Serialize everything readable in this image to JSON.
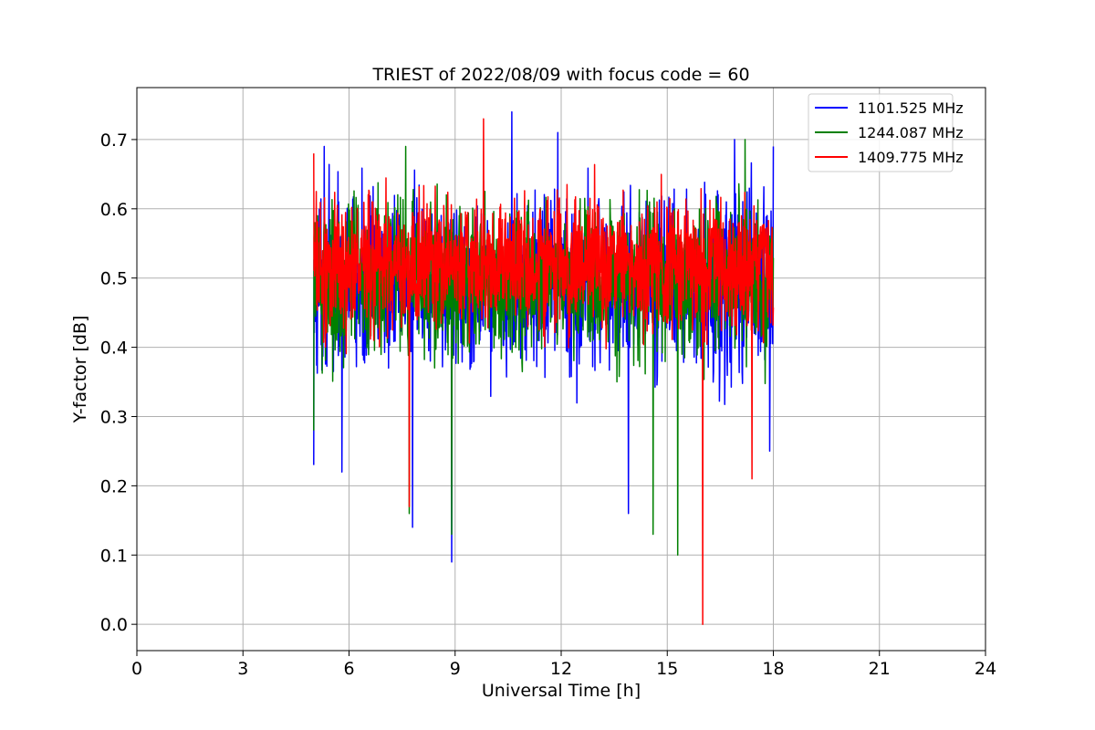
{
  "chart_data": {
    "type": "line",
    "title": "TRIEST of 2022/08/09 with focus code = 60",
    "xlabel": "Universal Time [h]",
    "ylabel": "Y-factor [dB]",
    "xlim": [
      0,
      24
    ],
    "ylim": [
      -0.038,
      0.775
    ],
    "x_ticks": [
      0,
      3,
      6,
      9,
      12,
      15,
      18,
      21,
      24
    ],
    "x_tick_labels": [
      "0",
      "3",
      "6",
      "9",
      "12",
      "15",
      "18",
      "21",
      "24"
    ],
    "y_ticks": [
      0.0,
      0.1,
      0.2,
      0.3,
      0.4,
      0.5,
      0.6,
      0.7
    ],
    "y_tick_labels": [
      "0.0",
      "0.1",
      "0.2",
      "0.3",
      "0.4",
      "0.5",
      "0.6",
      "0.7"
    ],
    "grid": true,
    "legend_position": "top-right",
    "series": [
      {
        "name": "1101.525 MHz",
        "color": "#0000ff",
        "x_range": [
          5.0,
          18.0
        ],
        "y_center": 0.49,
        "y_spread": 0.1,
        "y_min": 0.09,
        "y_max": 0.74,
        "extremes": [
          {
            "x": 5.0,
            "y": 0.23
          },
          {
            "x": 5.3,
            "y": 0.69
          },
          {
            "x": 5.8,
            "y": 0.22
          },
          {
            "x": 7.8,
            "y": 0.14
          },
          {
            "x": 8.9,
            "y": 0.09
          },
          {
            "x": 10.6,
            "y": 0.74
          },
          {
            "x": 11.9,
            "y": 0.71
          },
          {
            "x": 13.9,
            "y": 0.16
          },
          {
            "x": 16.9,
            "y": 0.7
          },
          {
            "x": 17.9,
            "y": 0.25
          },
          {
            "x": 18.0,
            "y": 0.69
          }
        ]
      },
      {
        "name": "1244.087 MHz",
        "color": "#008000",
        "x_range": [
          5.0,
          18.0
        ],
        "y_center": 0.5,
        "y_spread": 0.09,
        "y_min": 0.1,
        "y_max": 0.7,
        "extremes": [
          {
            "x": 5.0,
            "y": 0.28
          },
          {
            "x": 7.6,
            "y": 0.69
          },
          {
            "x": 7.7,
            "y": 0.16
          },
          {
            "x": 8.9,
            "y": 0.13
          },
          {
            "x": 14.6,
            "y": 0.13
          },
          {
            "x": 15.3,
            "y": 0.1
          },
          {
            "x": 17.2,
            "y": 0.7
          }
        ]
      },
      {
        "name": "1409.775 MHz",
        "color": "#ff0000",
        "x_range": [
          5.0,
          18.0
        ],
        "y_center": 0.52,
        "y_spread": 0.08,
        "y_min": 0.0,
        "y_max": 0.73,
        "extremes": [
          {
            "x": 5.0,
            "y": 0.68
          },
          {
            "x": 7.7,
            "y": 0.17
          },
          {
            "x": 9.8,
            "y": 0.73
          },
          {
            "x": 16.0,
            "y": 0.0
          },
          {
            "x": 17.4,
            "y": 0.21
          }
        ]
      }
    ]
  }
}
